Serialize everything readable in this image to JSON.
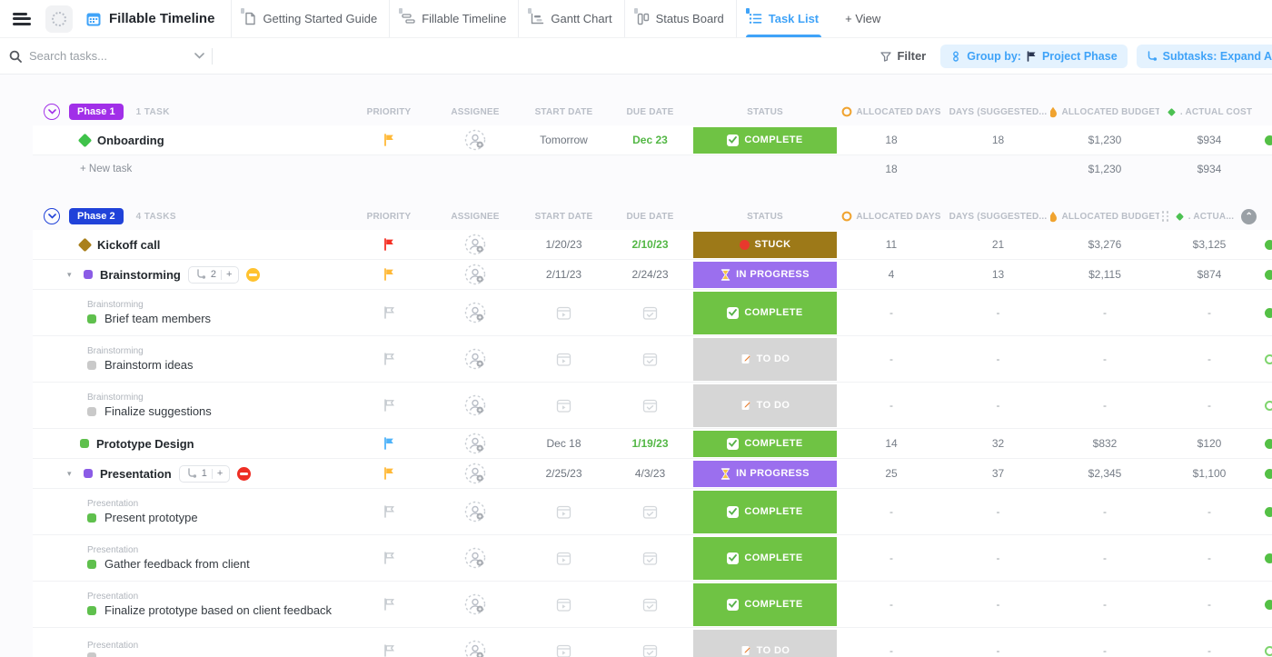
{
  "topbar": {
    "title": "Fillable Timeline",
    "tabs": [
      {
        "label": "Getting Started Guide",
        "icon": "doc",
        "active": false
      },
      {
        "label": "Fillable Timeline",
        "icon": "timeline",
        "active": false
      },
      {
        "label": "Gantt Chart",
        "icon": "gantt",
        "active": false
      },
      {
        "label": "Status Board",
        "icon": "board",
        "active": false
      },
      {
        "label": "Task List",
        "icon": "list",
        "active": true
      }
    ],
    "add_view": "+ View"
  },
  "toolbar": {
    "search_placeholder": "Search tasks...",
    "filter_label": "Filter",
    "group_by_label": "Group by:",
    "group_by_value": "Project Phase",
    "subtasks_pill": "Subtasks: Expand All"
  },
  "columns": {
    "priority": "PRIORITY",
    "assignee": "ASSIGNEE",
    "start": "START DATE",
    "due": "DUE DATE",
    "status": "STATUS",
    "alloc_days": "ALLOCATED DAYS",
    "days_suggested": "DAYS (SUGGESTED...",
    "alloc_budget": "ALLOCATED BUDGET",
    "actual_cost": ". ACTUAL COST",
    "actual_cost_short": ". ACTUA..."
  },
  "status_styles": {
    "COMPLETE": {
      "bg": "#6fc344",
      "icon": "check"
    },
    "IN PROGRESS": {
      "bg": "#9b6fee",
      "icon": "hourglass"
    },
    "STUCK": {
      "bg": "#9d7918",
      "icon": "red-dot"
    },
    "TO DO": {
      "bg": "#d6d6d6",
      "icon": "memo"
    }
  },
  "groups": [
    {
      "badge": "Phase 1",
      "badge_color": "#a12fe8",
      "count": "1 TASK",
      "header_variant": "full",
      "tasks": [
        {
          "type": "task",
          "icon": "diamond",
          "icon_color": "#3fc24a",
          "name": "Onboarding",
          "flag": "#ffb938",
          "start": "Tomorrow",
          "due": "Dec 23",
          "due_green": true,
          "status": "COMPLETE",
          "alloc_days": "18",
          "days_suggested": "18",
          "alloc_budget": "$1,230",
          "actual_cost": "$934",
          "edge_dot": "filled"
        }
      ],
      "footer": {
        "new_task": "+ New task",
        "alloc_days": "18",
        "alloc_budget": "$1,230",
        "actual_cost": "$934"
      }
    },
    {
      "badge": "Phase 2",
      "badge_color": "#2042d9",
      "count": "4 TASKS",
      "header_variant": "dragging",
      "tasks": [
        {
          "type": "task",
          "icon": "diamond",
          "icon_color": "#a9801d",
          "name": "Kickoff call",
          "flag": "#f53126",
          "start": "1/20/23",
          "due": "2/10/23",
          "due_green": true,
          "status": "STUCK",
          "alloc_days": "11",
          "days_suggested": "21",
          "alloc_budget": "$3,276",
          "actual_cost": "$3,125",
          "edge_dot": "filled"
        },
        {
          "type": "task",
          "expand": true,
          "icon": "square",
          "icon_color": "#8b5ce6",
          "name": "Brainstorming",
          "subtask_count": "2",
          "subtask_add": "+",
          "rollup": "#ffc22e",
          "flag": "#ffb938",
          "start": "2/11/23",
          "due": "2/24/23",
          "due_green": false,
          "status": "IN PROGRESS",
          "alloc_days": "4",
          "days_suggested": "13",
          "alloc_budget": "$2,115",
          "actual_cost": "$874",
          "edge_dot": "filled"
        },
        {
          "type": "subtask",
          "breadcrumb": "Brainstorming",
          "icon_color": "#5fc04d",
          "name": "Brief team members",
          "status": "COMPLETE",
          "alloc_days": "-",
          "days_suggested": "-",
          "alloc_budget": "-",
          "actual_cost": "-",
          "edge_dot": "filled"
        },
        {
          "type": "subtask",
          "breadcrumb": "Brainstorming",
          "icon_color": "#c9c9c9",
          "name": "Brainstorm ideas",
          "status": "TO DO",
          "alloc_days": "-",
          "days_suggested": "-",
          "alloc_budget": "-",
          "actual_cost": "-",
          "edge_dot": "outline"
        },
        {
          "type": "subtask",
          "breadcrumb": "Brainstorming",
          "icon_color": "#c9c9c9",
          "name": "Finalize suggestions",
          "status": "TO DO",
          "alloc_days": "-",
          "days_suggested": "-",
          "alloc_budget": "-",
          "actual_cost": "-",
          "edge_dot": "outline"
        },
        {
          "type": "task",
          "icon": "square",
          "icon_color": "#5fc04d",
          "name": "Prototype Design",
          "flag": "#4fb3f9",
          "start": "Dec 18",
          "due": "1/19/23",
          "due_green": true,
          "status": "COMPLETE",
          "alloc_days": "14",
          "days_suggested": "32",
          "alloc_budget": "$832",
          "actual_cost": "$120",
          "edge_dot": "filled"
        },
        {
          "type": "task",
          "expand": true,
          "icon": "square",
          "icon_color": "#8b5ce6",
          "name": "Presentation",
          "subtask_count": "1",
          "subtask_add": "+",
          "rollup": "#ee2e24",
          "flag": "#ffb938",
          "start": "2/25/23",
          "due": "4/3/23",
          "due_green": false,
          "status": "IN PROGRESS",
          "alloc_days": "25",
          "days_suggested": "37",
          "alloc_budget": "$2,345",
          "actual_cost": "$1,100",
          "edge_dot": "filled"
        },
        {
          "type": "subtask",
          "breadcrumb": "Presentation",
          "icon_color": "#5fc04d",
          "name": "Present prototype",
          "status": "COMPLETE",
          "alloc_days": "-",
          "days_suggested": "-",
          "alloc_budget": "-",
          "actual_cost": "-",
          "edge_dot": "filled"
        },
        {
          "type": "subtask",
          "breadcrumb": "Presentation",
          "icon_color": "#5fc04d",
          "name": "Gather feedback from client",
          "status": "COMPLETE",
          "alloc_days": "-",
          "days_suggested": "-",
          "alloc_budget": "-",
          "actual_cost": "-",
          "edge_dot": "filled"
        },
        {
          "type": "subtask",
          "breadcrumb": "Presentation",
          "icon_color": "#5fc04d",
          "name": "Finalize prototype based on client feedback",
          "status": "COMPLETE",
          "alloc_days": "-",
          "days_suggested": "-",
          "alloc_budget": "-",
          "actual_cost": "-",
          "edge_dot": "filled"
        },
        {
          "type": "subtask",
          "breadcrumb": "Presentation",
          "icon_color": "#c9c9c9",
          "name": "",
          "status": "TO DO",
          "alloc_days": "-",
          "days_suggested": "-",
          "alloc_budget": "-",
          "actual_cost": "-",
          "edge_dot": "outline"
        }
      ]
    }
  ]
}
